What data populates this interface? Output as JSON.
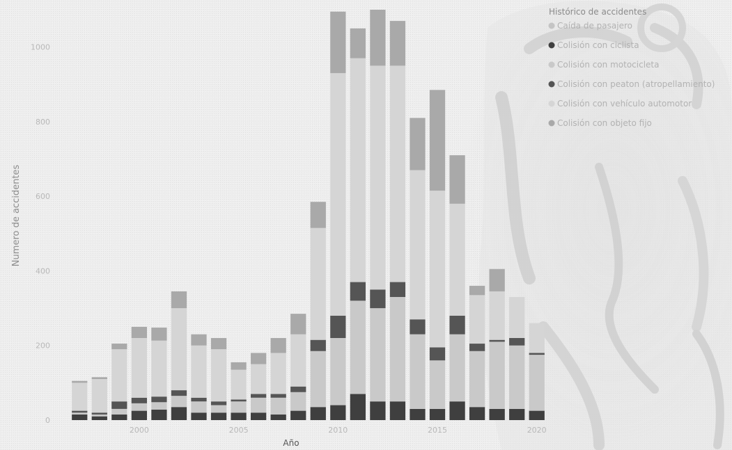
{
  "chart_data": {
    "type": "bar",
    "stacked": true,
    "title": "",
    "xlabel": "Año",
    "ylabel": "Numero de accidentes",
    "ylim": [
      0,
      1100
    ],
    "yticks": [
      0,
      200,
      400,
      600,
      800,
      1000
    ],
    "xticks": [
      2000,
      2005,
      2010,
      2015,
      2020
    ],
    "grid": false,
    "legend_title": "Histórico de accidentes",
    "legend_position": "top-right",
    "categories": [
      1997,
      1998,
      1999,
      2000,
      2001,
      2002,
      2003,
      2004,
      2005,
      2006,
      2007,
      2008,
      2009,
      2010,
      2011,
      2012,
      2013,
      2014,
      2015,
      2016,
      2017,
      2018,
      2019,
      2020
    ],
    "series": [
      {
        "name": "Caída de pasajero",
        "color": "#c4c4c4",
        "values": [
          0,
          0,
          0,
          0,
          0,
          0,
          0,
          0,
          0,
          0,
          0,
          0,
          0,
          0,
          0,
          0,
          0,
          0,
          0,
          0,
          0,
          0,
          0,
          0
        ]
      },
      {
        "name": "Colisión con ciclista",
        "color": "#3f3f3f",
        "values": [
          15,
          10,
          15,
          25,
          28,
          35,
          20,
          20,
          20,
          20,
          15,
          25,
          35,
          40,
          70,
          50,
          50,
          30,
          30,
          50,
          35,
          30,
          30,
          25
        ]
      },
      {
        "name": "Colisión con motocicleta",
        "color": "#c9c9c9",
        "values": [
          5,
          5,
          15,
          20,
          20,
          30,
          30,
          20,
          30,
          40,
          45,
          50,
          150,
          180,
          250,
          250,
          280,
          200,
          130,
          180,
          150,
          180,
          170,
          150
        ]
      },
      {
        "name": "Colisión con peaton (atropellamiento)",
        "color": "#555555",
        "values": [
          5,
          5,
          20,
          15,
          15,
          15,
          10,
          10,
          5,
          10,
          10,
          15,
          30,
          60,
          50,
          50,
          40,
          40,
          35,
          50,
          20,
          5,
          20,
          5
        ]
      },
      {
        "name": "Colisión con vehículo automotor",
        "color": "#d5d5d5",
        "values": [
          75,
          90,
          140,
          160,
          150,
          220,
          140,
          140,
          80,
          80,
          110,
          140,
          300,
          650,
          600,
          600,
          580,
          400,
          420,
          300,
          130,
          130,
          110,
          80
        ]
      },
      {
        "name": "Colisión con objeto fijo",
        "color": "#a9a9a9",
        "values": [
          5,
          5,
          15,
          30,
          35,
          45,
          30,
          30,
          20,
          30,
          40,
          55,
          70,
          165,
          80,
          150,
          120,
          140,
          270,
          130,
          25,
          60,
          0,
          0
        ]
      }
    ]
  }
}
